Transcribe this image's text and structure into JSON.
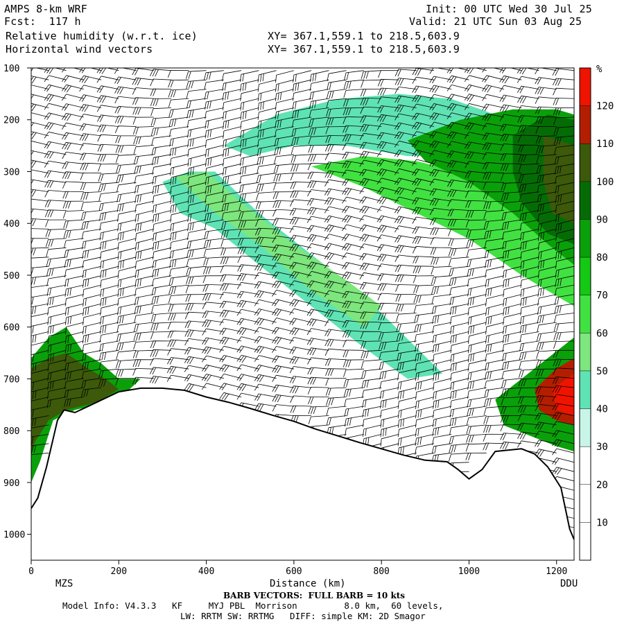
{
  "header": {
    "model": "AMPS 8-km WRF",
    "forecast": "Fcst:  117 h",
    "field1": "Relative humidity (w.r.t. ice)",
    "field2": "Horizontal wind vectors",
    "init": "Init: 00 UTC Wed 30 Jul 25",
    "valid": "Valid: 21 UTC Sun 03 Aug 25",
    "xy1": "XY= 367.1,559.1 to 218.5,603.9",
    "xy2": "XY= 367.1,559.1 to 218.5,603.9"
  },
  "chart_data": {
    "type": "heatmap",
    "title": "Relative humidity (w.r.t. ice)",
    "xlabel": "Distance (km)",
    "ylabel": "",
    "xlim": [
      0,
      1240
    ],
    "ylim": [
      1050,
      100
    ],
    "x_ticks": [
      0,
      200,
      400,
      600,
      800,
      1000,
      1200
    ],
    "y_ticks": [
      100,
      200,
      300,
      400,
      500,
      600,
      700,
      800,
      900,
      1000
    ],
    "x_endpoint_labels": {
      "left": "MZS",
      "right": "DDU"
    },
    "colorbar": {
      "unit": "%",
      "levels": [
        10,
        20,
        30,
        40,
        50,
        60,
        70,
        80,
        90,
        100,
        110,
        120
      ],
      "colors": [
        "#ffffff",
        "#ffffff",
        "#ffffff",
        "#c8f5e8",
        "#5fe3b4",
        "#7de67d",
        "#41e141",
        "#14c814",
        "#0aa00a",
        "#056c05",
        "#3c5a0a",
        "#b41e00",
        "#f01400"
      ]
    },
    "terrain_profile": [
      {
        "x": 0,
        "p": 950
      },
      {
        "x": 15,
        "p": 930
      },
      {
        "x": 35,
        "p": 870
      },
      {
        "x": 60,
        "p": 780
      },
      {
        "x": 75,
        "p": 760
      },
      {
        "x": 100,
        "p": 765
      },
      {
        "x": 150,
        "p": 745
      },
      {
        "x": 200,
        "p": 725
      },
      {
        "x": 250,
        "p": 718
      },
      {
        "x": 300,
        "p": 718
      },
      {
        "x": 350,
        "p": 722
      },
      {
        "x": 400,
        "p": 735
      },
      {
        "x": 450,
        "p": 745
      },
      {
        "x": 500,
        "p": 757
      },
      {
        "x": 550,
        "p": 770
      },
      {
        "x": 600,
        "p": 782
      },
      {
        "x": 650,
        "p": 797
      },
      {
        "x": 700,
        "p": 810
      },
      {
        "x": 750,
        "p": 823
      },
      {
        "x": 800,
        "p": 835
      },
      {
        "x": 850,
        "p": 847
      },
      {
        "x": 900,
        "p": 857
      },
      {
        "x": 950,
        "p": 860
      },
      {
        "x": 975,
        "p": 875
      },
      {
        "x": 1000,
        "p": 893
      },
      {
        "x": 1030,
        "p": 875
      },
      {
        "x": 1060,
        "p": 840
      },
      {
        "x": 1120,
        "p": 835
      },
      {
        "x": 1150,
        "p": 845
      },
      {
        "x": 1180,
        "p": 870
      },
      {
        "x": 1210,
        "p": 910
      },
      {
        "x": 1230,
        "p": 990
      },
      {
        "x": 1240,
        "p": 1010
      }
    ],
    "humidity_regions": [
      {
        "level": 40,
        "outline": [
          [
            300,
            320
          ],
          [
            360,
            300
          ],
          [
            420,
            300
          ],
          [
            520,
            380
          ],
          [
            640,
            460
          ],
          [
            760,
            540
          ],
          [
            880,
            640
          ],
          [
            940,
            690
          ],
          [
            860,
            700
          ],
          [
            760,
            640
          ],
          [
            640,
            560
          ],
          [
            520,
            480
          ],
          [
            420,
            410
          ],
          [
            340,
            380
          ]
        ]
      },
      {
        "level": 50,
        "outline": [
          [
            330,
            310
          ],
          [
            400,
            300
          ],
          [
            480,
            360
          ],
          [
            600,
            440
          ],
          [
            720,
            510
          ],
          [
            800,
            560
          ],
          [
            760,
            600
          ],
          [
            640,
            530
          ],
          [
            520,
            440
          ],
          [
            420,
            380
          ]
        ]
      },
      {
        "level": 40,
        "outline": [
          [
            440,
            250
          ],
          [
            560,
            190
          ],
          [
            700,
            160
          ],
          [
            840,
            150
          ],
          [
            960,
            160
          ],
          [
            1060,
            190
          ],
          [
            1100,
            240
          ],
          [
            1000,
            270
          ],
          [
            860,
            270
          ],
          [
            720,
            250
          ],
          [
            600,
            250
          ],
          [
            500,
            270
          ]
        ]
      },
      {
        "level": 60,
        "outline": [
          [
            640,
            290
          ],
          [
            760,
            270
          ],
          [
            880,
            280
          ],
          [
            980,
            300
          ],
          [
            1060,
            330
          ],
          [
            1120,
            380
          ],
          [
            1180,
            430
          ],
          [
            1240,
            470
          ],
          [
            1240,
            560
          ],
          [
            1120,
            500
          ],
          [
            1000,
            430
          ],
          [
            880,
            380
          ],
          [
            760,
            330
          ]
        ]
      },
      {
        "level": 80,
        "outline": [
          [
            860,
            240
          ],
          [
            980,
            200
          ],
          [
            1100,
            180
          ],
          [
            1200,
            180
          ],
          [
            1240,
            190
          ],
          [
            1240,
            480
          ],
          [
            1180,
            440
          ],
          [
            1100,
            380
          ],
          [
            1000,
            320
          ],
          [
            900,
            280
          ]
        ]
      },
      {
        "level": 90,
        "outline": [
          [
            1100,
            230
          ],
          [
            1180,
            190
          ],
          [
            1240,
            200
          ],
          [
            1240,
            440
          ],
          [
            1180,
            420
          ],
          [
            1120,
            360
          ],
          [
            1100,
            300
          ]
        ]
      },
      {
        "level": 100,
        "outline": [
          [
            1170,
            230
          ],
          [
            1240,
            250
          ],
          [
            1240,
            400
          ],
          [
            1190,
            380
          ],
          [
            1170,
            320
          ]
        ]
      },
      {
        "level": 80,
        "outline": [
          [
            0,
            660
          ],
          [
            40,
            620
          ],
          [
            80,
            600
          ],
          [
            120,
            650
          ],
          [
            160,
            670
          ],
          [
            200,
            700
          ],
          [
            250,
            700
          ],
          [
            200,
            740
          ],
          [
            100,
            760
          ],
          [
            50,
            780
          ],
          [
            20,
            860
          ],
          [
            0,
            900
          ]
        ]
      },
      {
        "level": 100,
        "outline": [
          [
            0,
            680
          ],
          [
            40,
            660
          ],
          [
            80,
            650
          ],
          [
            130,
            680
          ],
          [
            170,
            700
          ],
          [
            200,
            720
          ],
          [
            150,
            745
          ],
          [
            80,
            760
          ],
          [
            40,
            780
          ],
          [
            10,
            820
          ],
          [
            0,
            840
          ]
        ]
      },
      {
        "level": 80,
        "outline": [
          [
            1060,
            740
          ],
          [
            1120,
            700
          ],
          [
            1180,
            660
          ],
          [
            1240,
            620
          ],
          [
            1240,
            840
          ],
          [
            1200,
            830
          ],
          [
            1140,
            810
          ],
          [
            1080,
            790
          ]
        ]
      },
      {
        "level": 110,
        "outline": [
          [
            1150,
            720
          ],
          [
            1200,
            680
          ],
          [
            1240,
            660
          ],
          [
            1240,
            790
          ],
          [
            1200,
            780
          ],
          [
            1160,
            760
          ]
        ]
      },
      {
        "level": 120,
        "outline": [
          [
            1190,
            720
          ],
          [
            1240,
            690
          ],
          [
            1240,
            770
          ],
          [
            1200,
            760
          ]
        ]
      }
    ],
    "wind_barbs": {
      "full_barb_kts": 10
    }
  },
  "footer": {
    "left_label": "MZS",
    "right_label": "DDU",
    "barb_note": "BARB VECTORS:  FULL BARB = 10 kts",
    "model_info": "Model Info: V4.3.3   KF     MYJ PBL  Morrison         8.0 km,  60 levels,",
    "physics": "LW: RRTM SW: RRTMG   DIFF: simple KM: 2D Smagor"
  }
}
